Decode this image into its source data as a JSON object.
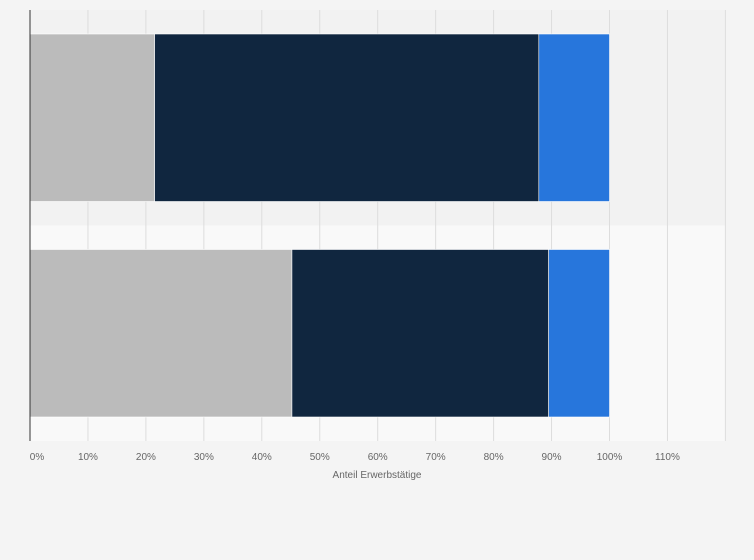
{
  "chart_data": {
    "type": "bar",
    "orientation": "horizontal",
    "stacked": true,
    "categories": [
      "",
      ""
    ],
    "series": [
      {
        "values": [
          21.5,
          45.2
        ],
        "color": "#bbbbbb"
      },
      {
        "values": [
          66.3,
          44.3
        ],
        "color": "#10263f"
      },
      {
        "values": [
          12.2,
          10.5
        ],
        "color": "#2776dc"
      }
    ],
    "xlabel": "Anteil Erwerbstätige",
    "ylabel": "",
    "xlim": [
      0,
      120
    ],
    "xticks": [
      0,
      10,
      20,
      30,
      40,
      50,
      60,
      70,
      80,
      90,
      100,
      110
    ],
    "xtick_labels": [
      "0%",
      "10%",
      "20%",
      "30%",
      "40%",
      "50%",
      "60%",
      "70%",
      "80%",
      "90%",
      "100%",
      "110%"
    ],
    "grid": true,
    "legend": "none"
  },
  "colors": {
    "background": "#f4f4f4",
    "plot_band_top": "#f2f2f2",
    "plot_band_bottom": "#f9f9f9",
    "gridline": "#dddddd",
    "axis_line": "#333333"
  }
}
